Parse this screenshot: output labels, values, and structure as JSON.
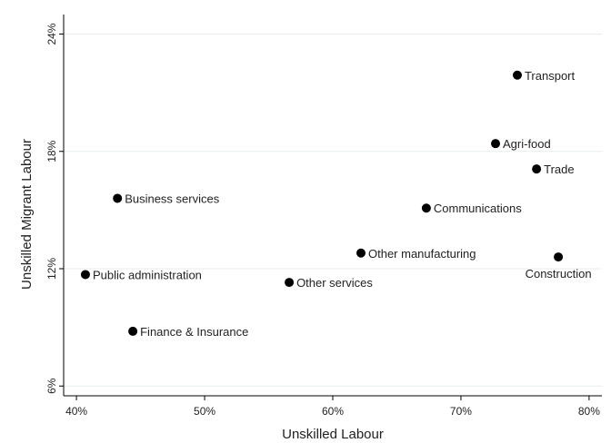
{
  "chart_data": {
    "type": "scatter",
    "title": "",
    "xlabel": "Unskilled Labour",
    "ylabel": "Unskilled Migrant Labour",
    "xlim": [
      0.39,
      0.81
    ],
    "ylim": [
      0.055,
      0.25
    ],
    "x_ticks": [
      0.4,
      0.5,
      0.6,
      0.7,
      0.8
    ],
    "x_tick_labels": [
      "40%",
      "50%",
      "60%",
      "70%",
      "80%"
    ],
    "y_ticks": [
      0.06,
      0.12,
      0.18,
      0.24
    ],
    "y_tick_labels": [
      "6%",
      "12%",
      "18%",
      "24%"
    ],
    "grid": true,
    "points": [
      {
        "label": "Transport",
        "x": 0.744,
        "y": 0.219
      },
      {
        "label": "Agri-food",
        "x": 0.727,
        "y": 0.184
      },
      {
        "label": "Trade",
        "x": 0.759,
        "y": 0.171
      },
      {
        "label": "Business services",
        "x": 0.432,
        "y": 0.156
      },
      {
        "label": "Communications",
        "x": 0.673,
        "y": 0.151
      },
      {
        "label": "Other manufacturing",
        "x": 0.622,
        "y": 0.128
      },
      {
        "label": "Construction",
        "x": 0.776,
        "y": 0.126
      },
      {
        "label": "Public administration",
        "x": 0.407,
        "y": 0.117
      },
      {
        "label": "Other services",
        "x": 0.566,
        "y": 0.113
      },
      {
        "label": "Finance & Insurance",
        "x": 0.444,
        "y": 0.088
      }
    ]
  }
}
